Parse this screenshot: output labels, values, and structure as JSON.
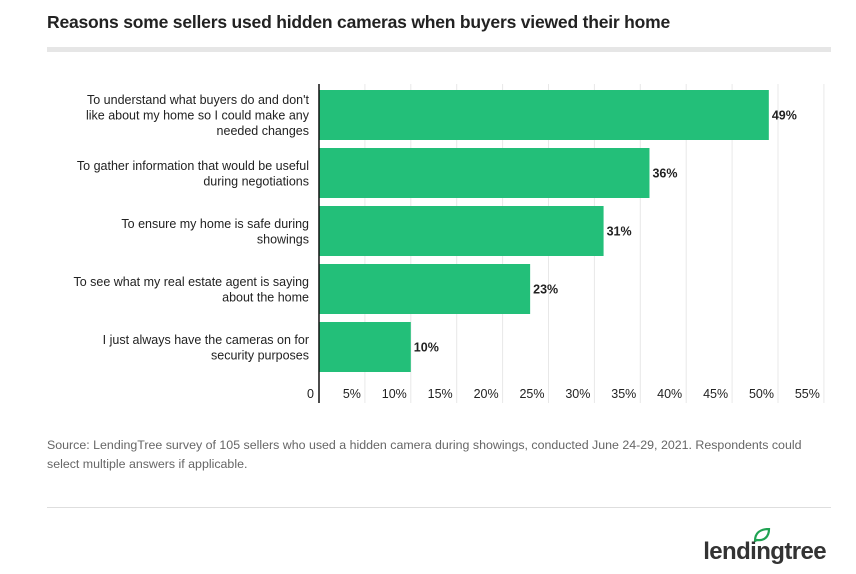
{
  "title": "Reasons some sellers used hidden cameras when buyers viewed their home",
  "source": "Source: LendingTree survey of 105 sellers who used a hidden camera during showings, conducted June 24-29, 2021. Respondents could select multiple answers if applicable.",
  "brand": {
    "name": "lendingtree",
    "color": "#333333",
    "accent": "#20a353"
  },
  "chart_data": {
    "type": "bar",
    "orientation": "horizontal",
    "categories": [
      [
        "To understand what buyers do and don't",
        "like about my home so I could make any",
        "needed changes"
      ],
      [
        "To gather information that would be useful",
        "during negotiations"
      ],
      [
        "To ensure my home is safe during",
        "showings"
      ],
      [
        "To see what my real estate agent is saying",
        "about the home"
      ],
      [
        "I just always have the cameras on for",
        "security purposes"
      ]
    ],
    "values": [
      49,
      36,
      31,
      23,
      10
    ],
    "value_labels": [
      "49%",
      "36%",
      "31%",
      "23%",
      "10%"
    ],
    "xlim": [
      0,
      55
    ],
    "x_ticks": [
      0,
      5,
      10,
      15,
      20,
      25,
      30,
      35,
      40,
      45,
      50,
      55
    ],
    "x_tick_labels": [
      "0",
      "5%",
      "10%",
      "15%",
      "20%",
      "25%",
      "30%",
      "35%",
      "40%",
      "45%",
      "50%",
      "55%"
    ],
    "bar_color": "#23bf79",
    "grid": "vertical"
  }
}
